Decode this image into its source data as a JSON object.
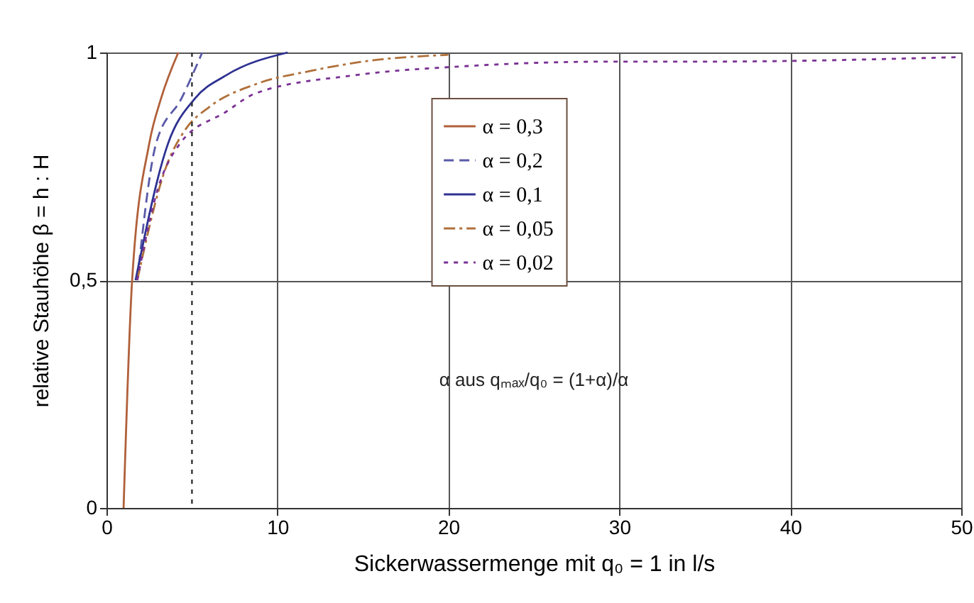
{
  "chart_data": {
    "type": "line",
    "xlabel": "Sickerwassermenge mit q₀ = 1 in l/s",
    "ylabel": "relative Stauhöhe β = h : H",
    "annotations": [
      "α aus qₘₐₓ/q₀ = (1+α)/α"
    ],
    "xlim": [
      0,
      50
    ],
    "xticks": [
      0,
      10,
      20,
      30,
      40,
      50
    ],
    "ylim": [
      0,
      1
    ],
    "yticks": [
      0,
      {
        "value": 0.5,
        "label": "0,5"
      },
      1
    ],
    "grid": true,
    "legend": "top",
    "marker": "none",
    "ref_lines": [
      {
        "axis": "x",
        "value": 5,
        "line_style": "dotted",
        "color": "#333333"
      }
    ],
    "series": [
      {
        "name": "α = 0,3",
        "color": "#b0603a",
        "line_style": "solid",
        "x": [
          1,
          1.5,
          2.5,
          3.2,
          4.2
        ],
        "values": [
          0,
          0.5,
          0.8,
          0.9,
          1
        ]
      },
      {
        "name": "α = 0,2",
        "color": "#5a5aa8",
        "line_style": "dashed",
        "x": [
          1.8,
          2.9,
          4.4,
          5.6
        ],
        "values": [
          0.5,
          0.8,
          0.9,
          1
        ]
      },
      {
        "name": "α = 0,1",
        "color": "#2e3192",
        "line_style": "solid",
        "x": [
          1.7,
          3.6,
          5.2,
          7,
          10.6
        ],
        "values": [
          0.5,
          0.8,
          0.9,
          0.95,
          1
        ]
      },
      {
        "name": "α = 0,05",
        "color": "#b0703a",
        "line_style": "dashdot",
        "x": [
          1.8,
          3.5,
          4.6,
          6,
          8.7,
          12,
          15,
          20
        ],
        "values": [
          0.5,
          0.75,
          0.83,
          0.88,
          0.93,
          0.96,
          0.98,
          0.995
        ]
      },
      {
        "name": "α = 0,02",
        "color": "#7b3294",
        "line_style": "dotted",
        "x": [
          1.8,
          3,
          4.3,
          7,
          8.7,
          14.5,
          21,
          29.5,
          35,
          50
        ],
        "values": [
          0.5,
          0.7,
          0.8,
          0.87,
          0.91,
          0.95,
          0.97,
          0.98,
          0.98,
          0.99
        ]
      }
    ]
  }
}
